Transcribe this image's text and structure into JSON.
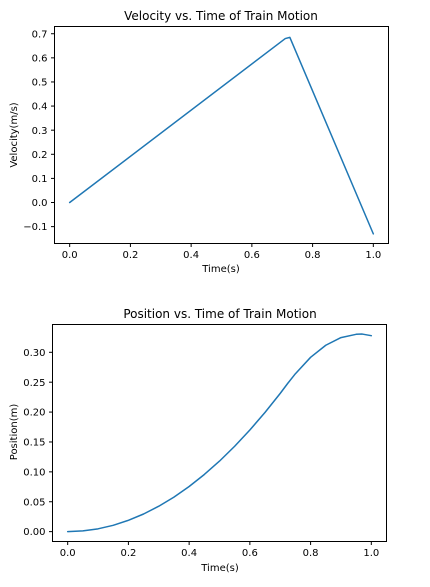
{
  "chart_data": [
    {
      "type": "line",
      "title": "Velocity vs. Time of Train Motion",
      "xlabel": "Time(s)",
      "ylabel": "Velocity(m/s)",
      "xlim": [
        -0.05,
        1.05
      ],
      "ylim": [
        -0.17,
        0.73
      ],
      "xticks": [
        0.0,
        0.2,
        0.4,
        0.6,
        0.8,
        1.0
      ],
      "xtick_labels": [
        "0.0",
        "0.2",
        "0.4",
        "0.6",
        "0.8",
        "1.0"
      ],
      "yticks": [
        -0.1,
        0.0,
        0.1,
        0.2,
        0.3,
        0.4,
        0.5,
        0.6,
        0.7
      ],
      "ytick_labels": [
        "−0.1",
        "0.0",
        "0.1",
        "0.2",
        "0.3",
        "0.4",
        "0.5",
        "0.6",
        "0.7"
      ],
      "grid": false,
      "series": [
        {
          "color": "#1f77b4",
          "x": [
            0.0,
            0.71,
            0.725,
            1.0
          ],
          "y": [
            0.0,
            0.68,
            0.685,
            -0.13
          ]
        }
      ]
    },
    {
      "type": "line",
      "title": "Position vs. Time of Train Motion",
      "xlabel": "Time(s)",
      "ylabel": "Position(m)",
      "xlim": [
        -0.05,
        1.05
      ],
      "ylim": [
        -0.0165,
        0.3465
      ],
      "xticks": [
        0.0,
        0.2,
        0.4,
        0.6,
        0.8,
        1.0
      ],
      "xtick_labels": [
        "0.0",
        "0.2",
        "0.4",
        "0.6",
        "0.8",
        "1.0"
      ],
      "yticks": [
        0.0,
        0.05,
        0.1,
        0.15,
        0.2,
        0.25,
        0.3
      ],
      "ytick_labels": [
        "0.00",
        "0.05",
        "0.10",
        "0.15",
        "0.20",
        "0.25",
        "0.30"
      ],
      "grid": false,
      "series": [
        {
          "color": "#1f77b4",
          "x": [
            0.0,
            0.05,
            0.1,
            0.15,
            0.2,
            0.25,
            0.3,
            0.35,
            0.4,
            0.45,
            0.5,
            0.55,
            0.6,
            0.65,
            0.7,
            0.725,
            0.75,
            0.8,
            0.85,
            0.9,
            0.95,
            0.97,
            1.0
          ],
          "y": [
            0.0,
            0.0012,
            0.0047,
            0.0106,
            0.0189,
            0.0295,
            0.0425,
            0.0578,
            0.0755,
            0.0956,
            0.118,
            0.1428,
            0.17,
            0.1995,
            0.2313,
            0.2482,
            0.2642,
            0.2916,
            0.3118,
            0.3246,
            0.3301,
            0.3305,
            0.3278
          ]
        }
      ]
    }
  ]
}
